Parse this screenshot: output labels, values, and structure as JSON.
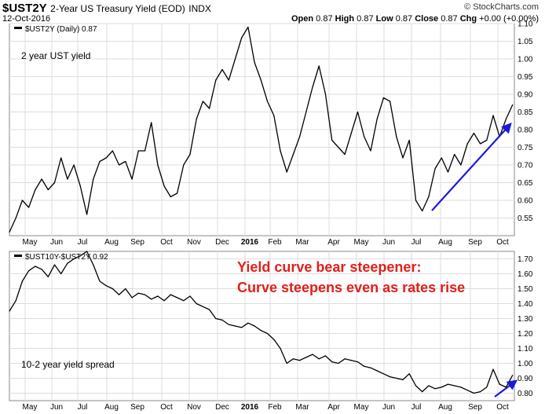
{
  "header": {
    "symbol": "$UST2Y",
    "description": "2-Year US Treasury Yield (EOD)",
    "exchange": "INDX",
    "date": "12-Oct-2016",
    "brand": "© StockCharts.com",
    "open_label": "Open",
    "open": "0.87",
    "high_label": "High",
    "high": "0.87",
    "low_label": "Low",
    "low": "0.87",
    "close_label": "Close",
    "close": "0.87",
    "chg_label": "Chg",
    "chg": "+0.00 (+0.00%)"
  },
  "colors": {
    "line": "#000000",
    "grid": "#dddddd",
    "arrow": "#1a1ad8",
    "annotation": "#e0201b",
    "legend_swatch": "#000000"
  },
  "x_labels": [
    "May",
    "Jun",
    "Jul",
    "Aug",
    "Sep",
    "Oct",
    "Nov",
    "Dec",
    "2016",
    "Feb",
    "Mar",
    "Apr",
    "May",
    "Jun",
    "Jul",
    "Aug",
    "Sep",
    "Oct"
  ],
  "x_label_bold_index": 8,
  "chart_data": [
    {
      "type": "line",
      "legend": "$UST2Y (Daily) 0.87",
      "panel_label": "2 year UST yield",
      "ylim": [
        0.5,
        1.1
      ],
      "y_ticks": [
        0.55,
        0.6,
        0.65,
        0.7,
        0.75,
        0.8,
        0.85,
        0.9,
        0.95,
        1.0,
        1.05,
        1.1
      ],
      "y_tick_labels": [
        "0.55",
        "0.60",
        "0.65",
        "0.70",
        "0.75",
        "0.80",
        "0.85",
        "0.90",
        "0.95",
        "1.00",
        "1.05",
        "1.10"
      ],
      "x": [
        "2015-04-15",
        "2015-04-22",
        "2015-04-29",
        "2015-05-06",
        "2015-05-13",
        "2015-05-20",
        "2015-05-27",
        "2015-06-03",
        "2015-06-10",
        "2015-06-17",
        "2015-06-24",
        "2015-07-01",
        "2015-07-08",
        "2015-07-15",
        "2015-07-22",
        "2015-07-29",
        "2015-08-05",
        "2015-08-12",
        "2015-08-19",
        "2015-08-26",
        "2015-09-02",
        "2015-09-09",
        "2015-09-16",
        "2015-09-23",
        "2015-09-30",
        "2015-10-07",
        "2015-10-14",
        "2015-10-21",
        "2015-10-28",
        "2015-11-04",
        "2015-11-11",
        "2015-11-18",
        "2015-11-25",
        "2015-12-02",
        "2015-12-09",
        "2015-12-16",
        "2015-12-23",
        "2015-12-30",
        "2016-01-06",
        "2016-01-13",
        "2016-01-20",
        "2016-01-27",
        "2016-02-03",
        "2016-02-10",
        "2016-02-17",
        "2016-02-24",
        "2016-03-02",
        "2016-03-09",
        "2016-03-16",
        "2016-03-23",
        "2016-03-30",
        "2016-04-06",
        "2016-04-13",
        "2016-04-20",
        "2016-04-27",
        "2016-05-04",
        "2016-05-11",
        "2016-05-18",
        "2016-05-25",
        "2016-06-01",
        "2016-06-08",
        "2016-06-15",
        "2016-06-22",
        "2016-06-29",
        "2016-07-06",
        "2016-07-13",
        "2016-07-20",
        "2016-07-27",
        "2016-08-03",
        "2016-08-10",
        "2016-08-17",
        "2016-08-24",
        "2016-08-31",
        "2016-09-07",
        "2016-09-14",
        "2016-09-21",
        "2016-09-28",
        "2016-10-05",
        "2016-10-12"
      ],
      "values": [
        0.51,
        0.55,
        0.6,
        0.58,
        0.63,
        0.66,
        0.63,
        0.65,
        0.72,
        0.66,
        0.7,
        0.64,
        0.56,
        0.66,
        0.71,
        0.72,
        0.74,
        0.7,
        0.71,
        0.66,
        0.74,
        0.74,
        0.82,
        0.7,
        0.64,
        0.61,
        0.62,
        0.7,
        0.73,
        0.83,
        0.88,
        0.86,
        0.94,
        0.97,
        0.94,
        1.0,
        1.06,
        1.09,
        0.99,
        0.94,
        0.88,
        0.84,
        0.74,
        0.68,
        0.73,
        0.78,
        0.85,
        0.92,
        0.98,
        0.9,
        0.77,
        0.75,
        0.73,
        0.79,
        0.85,
        0.78,
        0.74,
        0.83,
        0.89,
        0.88,
        0.78,
        0.72,
        0.77,
        0.6,
        0.57,
        0.61,
        0.69,
        0.72,
        0.68,
        0.73,
        0.7,
        0.76,
        0.79,
        0.76,
        0.77,
        0.84,
        0.78,
        0.83,
        0.87
      ]
    },
    {
      "type": "line",
      "legend": "$UST10Y-$UST2Y 0.92",
      "panel_label": "10-2 year yield spread",
      "ylim": [
        0.75,
        1.75
      ],
      "y_ticks": [
        0.8,
        0.9,
        1.0,
        1.1,
        1.2,
        1.3,
        1.4,
        1.5,
        1.6,
        1.7
      ],
      "y_tick_labels": [
        "0.80",
        "0.90",
        "1.00",
        "1.10",
        "1.20",
        "1.30",
        "1.40",
        "1.50",
        "1.60",
        "1.70"
      ],
      "x": [
        "2015-04-15",
        "2015-04-22",
        "2015-04-29",
        "2015-05-06",
        "2015-05-13",
        "2015-05-20",
        "2015-05-27",
        "2015-06-03",
        "2015-06-10",
        "2015-06-17",
        "2015-06-24",
        "2015-07-01",
        "2015-07-08",
        "2015-07-15",
        "2015-07-22",
        "2015-07-29",
        "2015-08-05",
        "2015-08-12",
        "2015-08-19",
        "2015-08-26",
        "2015-09-02",
        "2015-09-09",
        "2015-09-16",
        "2015-09-23",
        "2015-09-30",
        "2015-10-07",
        "2015-10-14",
        "2015-10-21",
        "2015-10-28",
        "2015-11-04",
        "2015-11-11",
        "2015-11-18",
        "2015-11-25",
        "2015-12-02",
        "2015-12-09",
        "2015-12-16",
        "2015-12-23",
        "2015-12-30",
        "2016-01-06",
        "2016-01-13",
        "2016-01-20",
        "2016-01-27",
        "2016-02-03",
        "2016-02-10",
        "2016-02-17",
        "2016-02-24",
        "2016-03-02",
        "2016-03-09",
        "2016-03-16",
        "2016-03-23",
        "2016-03-30",
        "2016-04-06",
        "2016-04-13",
        "2016-04-20",
        "2016-04-27",
        "2016-05-04",
        "2016-05-11",
        "2016-05-18",
        "2016-05-25",
        "2016-06-01",
        "2016-06-08",
        "2016-06-15",
        "2016-06-22",
        "2016-06-29",
        "2016-07-06",
        "2016-07-13",
        "2016-07-20",
        "2016-07-27",
        "2016-08-03",
        "2016-08-10",
        "2016-08-17",
        "2016-08-24",
        "2016-08-31",
        "2016-09-07",
        "2016-09-14",
        "2016-09-21",
        "2016-09-28",
        "2016-10-05",
        "2016-10-12"
      ],
      "values": [
        1.35,
        1.42,
        1.55,
        1.62,
        1.65,
        1.63,
        1.58,
        1.66,
        1.6,
        1.67,
        1.7,
        1.72,
        1.75,
        1.66,
        1.55,
        1.52,
        1.5,
        1.46,
        1.5,
        1.44,
        1.47,
        1.46,
        1.43,
        1.45,
        1.42,
        1.46,
        1.44,
        1.42,
        1.45,
        1.4,
        1.38,
        1.36,
        1.3,
        1.29,
        1.26,
        1.25,
        1.24,
        1.27,
        1.25,
        1.22,
        1.2,
        1.16,
        1.1,
        1.0,
        1.03,
        1.02,
        1.04,
        1.06,
        1.03,
        1.05,
        1.01,
        1.0,
        1.03,
        1.02,
        1.01,
        0.98,
        0.97,
        0.95,
        0.93,
        0.91,
        0.9,
        0.89,
        0.93,
        0.85,
        0.81,
        0.85,
        0.83,
        0.84,
        0.86,
        0.85,
        0.84,
        0.82,
        0.8,
        0.81,
        0.84,
        0.96,
        0.86,
        0.84,
        0.92
      ]
    }
  ],
  "annotations": {
    "bear_line1": "Yield curve bear steepener:",
    "bear_line2": "Curve steepens even as rates rise"
  }
}
